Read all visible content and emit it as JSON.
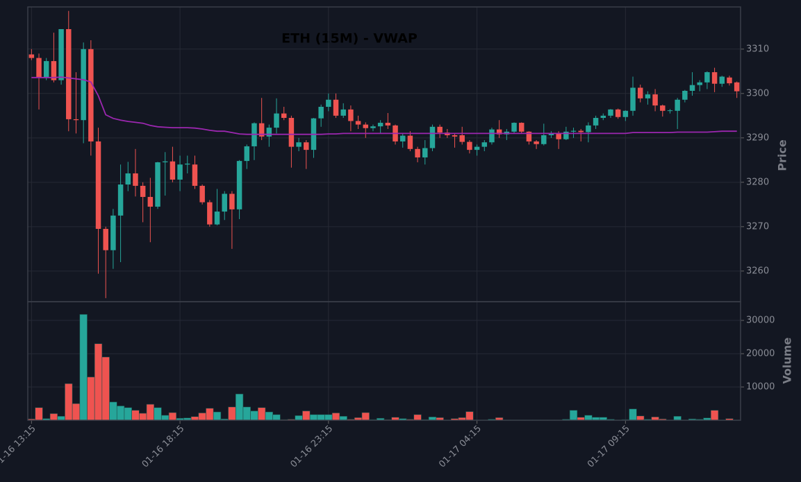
{
  "chart_data": {
    "type": "candlestick",
    "title": "ETH (15M) - VWAP",
    "ylabel": "Price",
    "volume_ylabel": "Volume",
    "up_color": "#26a69a",
    "down_color": "#ef5350",
    "grid": true,
    "ylim": [
      3253.1,
      3319.5
    ],
    "yticks": [
      3260,
      3270,
      3280,
      3290,
      3300,
      3310
    ],
    "volume_ylim": [
      0,
      35625
    ],
    "volume_yticks": [
      10000,
      20000,
      30000
    ],
    "categories": [
      "01-16 13:15",
      null,
      null,
      null,
      null,
      null,
      null,
      null,
      null,
      null,
      null,
      null,
      null,
      null,
      null,
      null,
      null,
      null,
      null,
      null,
      "01-16 18:15",
      null,
      null,
      null,
      null,
      null,
      null,
      null,
      null,
      null,
      null,
      null,
      null,
      null,
      null,
      null,
      null,
      null,
      null,
      null,
      "01-16 23:15",
      null,
      null,
      null,
      null,
      null,
      null,
      null,
      null,
      null,
      null,
      null,
      null,
      null,
      null,
      null,
      null,
      null,
      null,
      null,
      "01-17 04:15",
      null,
      null,
      null,
      null,
      null,
      null,
      null,
      null,
      null,
      null,
      null,
      null,
      null,
      null,
      null,
      null,
      null,
      null,
      null,
      "01-17 09:15",
      null,
      null,
      null,
      null,
      null,
      null,
      null,
      null,
      null,
      null,
      null,
      null,
      null,
      null,
      null
    ],
    "open": [
      3308.8,
      3308,
      3303.7,
      3307.3,
      3303,
      3314.5,
      3294.2,
      3294,
      3310,
      3289.2,
      3269.5,
      3264.7,
      3272.5,
      3279.5,
      3282,
      3279.2,
      3276.7,
      3274.5,
      3284.5,
      3284.7,
      3280.6,
      3284,
      3284,
      3279.2,
      3275.5,
      3270.5,
      3273.4,
      3277.4,
      3273.9,
      3284.8,
      3288.1,
      3293.3,
      3290.3,
      3292.3,
      3295.5,
      3294.5,
      3288,
      3289,
      3287.3,
      3294.4,
      3297,
      3298.6,
      3295,
      3296.4,
      3293.8,
      3293,
      3292.2,
      3292.6,
      3293.4,
      3292.8,
      3289.2,
      3290.5,
      3287.5,
      3285.6,
      3287.7,
      3292.5,
      3291.2,
      3290.6,
      3290.6,
      3289.1,
      3287.3,
      3288,
      3289,
      3291.9,
      3290.8,
      3291.4,
      3293.4,
      3291.4,
      3289.2,
      3288.6,
      3290.6,
      3291,
      3289.7,
      3291.4,
      3291.6,
      3291.3,
      3292.8,
      3294.5,
      3295,
      3296.4,
      3294.7,
      3296.1,
      3301.3,
      3298.9,
      3299.8,
      3297.3,
      3296.1,
      3296.1,
      3298.6,
      3300.6,
      3301.9,
      3302.5,
      3304.8,
      3302.2,
      3303.6,
      3302.5
    ],
    "high": [
      3310,
      3309,
      3308,
      3313.7,
      3314.5,
      3318.6,
      3304.8,
      3311.5,
      3312,
      3292.3,
      3270,
      3274,
      3284,
      3284.6,
      3287.5,
      3280,
      3281,
      3284.6,
      3286.8,
      3288,
      3286,
      3286,
      3286,
      3279.5,
      3276,
      3278.5,
      3278,
      3278,
      3285,
      3288.5,
      3293.5,
      3299,
      3293,
      3298.9,
      3297,
      3295,
      3290,
      3289.5,
      3294.5,
      3297.5,
      3300,
      3300,
      3297.8,
      3297.3,
      3295,
      3293.5,
      3293,
      3294,
      3295.6,
      3293,
      3291,
      3291.5,
      3288,
      3289.5,
      3293,
      3293,
      3292,
      3291,
      3292.5,
      3289.5,
      3288.5,
      3289.5,
      3292.3,
      3294,
      3292,
      3293.5,
      3293.5,
      3291.5,
      3289.5,
      3293.2,
      3291.5,
      3291.5,
      3292.5,
      3292.3,
      3292,
      3293.5,
      3295,
      3295.5,
      3296.5,
      3296.6,
      3296.2,
      3303.8,
      3302,
      3300.5,
      3301,
      3297.5,
      3296.5,
      3299,
      3300.8,
      3304.8,
      3303,
      3305,
      3305.8,
      3304,
      3304,
      3302.7
    ],
    "low": [
      3307.5,
      3296.4,
      3303,
      3302.5,
      3302,
      3291.5,
      3291,
      3288.8,
      3286,
      3259.4,
      3253.9,
      3260.5,
      3262,
      3278,
      3276.8,
      3271,
      3266.5,
      3274,
      3277,
      3280,
      3278,
      3282,
      3278.5,
      3275,
      3270,
      3270.3,
      3271.5,
      3265,
      3271.7,
      3283,
      3285,
      3289.5,
      3288,
      3291,
      3294,
      3283.3,
      3287,
      3283,
      3285.5,
      3292.5,
      3296,
      3294.5,
      3294.5,
      3291.5,
      3292,
      3290,
      3291.5,
      3291,
      3292,
      3288.5,
      3287.8,
      3287,
      3284.5,
      3284,
      3287,
      3290,
      3290,
      3287.8,
      3288.5,
      3286.5,
      3286,
      3287,
      3288.5,
      3290,
      3289.5,
      3291,
      3291,
      3288.5,
      3287.5,
      3288.3,
      3290,
      3287.5,
      3289.5,
      3290,
      3289.2,
      3289,
      3292,
      3294,
      3294.5,
      3294.3,
      3293.8,
      3295,
      3298,
      3297.5,
      3296,
      3294.8,
      3295.5,
      3292,
      3298,
      3299.5,
      3300.5,
      3301,
      3300.3,
      3301.5,
      3301.8,
      3299
    ],
    "close": [
      3308,
      3303.7,
      3307.3,
      3303,
      3314.5,
      3294.2,
      3294,
      3310,
      3289.2,
      3269.5,
      3264.7,
      3272.5,
      3279.5,
      3282,
      3279.2,
      3276.7,
      3274.5,
      3284.5,
      3284.7,
      3280.6,
      3284,
      3284.2,
      3279.2,
      3275.5,
      3270.5,
      3273.4,
      3277.4,
      3273.9,
      3284.8,
      3288.1,
      3293.3,
      3290.3,
      3292.3,
      3295.5,
      3294.5,
      3288,
      3289,
      3287.3,
      3294.4,
      3297,
      3298.6,
      3295,
      3296.4,
      3293.8,
      3293,
      3292.2,
      3292.6,
      3293.4,
      3292.8,
      3289.2,
      3290.5,
      3287.5,
      3285.6,
      3287.7,
      3292.5,
      3291.2,
      3290.6,
      3290.3,
      3289.1,
      3287.3,
      3288,
      3289,
      3291.9,
      3290.8,
      3291.4,
      3293.4,
      3291.4,
      3289.2,
      3288.6,
      3290.6,
      3291,
      3289.7,
      3291.4,
      3291.6,
      3291.3,
      3292.8,
      3294.5,
      3295,
      3296.4,
      3294.7,
      3296.1,
      3301.3,
      3298.9,
      3299.8,
      3297.3,
      3296.1,
      3296.2,
      3298.6,
      3300.6,
      3301.9,
      3302.5,
      3304.8,
      3302.2,
      3303.8,
      3302.3,
      3300.5
    ],
    "volume": [
      400,
      3800,
      500,
      2000,
      1200,
      11000,
      5000,
      31800,
      13000,
      23000,
      19000,
      5500,
      4300,
      3800,
      3000,
      2100,
      4800,
      3800,
      1500,
      2300,
      600,
      700,
      1100,
      2200,
      3600,
      2500,
      400,
      4000,
      7900,
      4000,
      2800,
      3800,
      2500,
      1700,
      200,
      300,
      1400,
      2800,
      1700,
      1700,
      1700,
      2200,
      1200,
      300,
      800,
      2300,
      200,
      600,
      200,
      900,
      500,
      300,
      1700,
      200,
      1000,
      800,
      100,
      500,
      800,
      2600,
      100,
      100,
      300,
      800,
      100,
      100,
      100,
      100,
      100,
      100,
      100,
      100,
      300,
      3000,
      900,
      1500,
      900,
      900,
      300,
      100,
      200,
      3400,
      1300,
      300,
      1000,
      400,
      100,
      1200,
      100,
      400,
      300,
      700,
      3000,
      100,
      500,
      100
    ],
    "vwap": {
      "color": "#9c27b0",
      "values": [
        3303.6,
        3303.6,
        3303.6,
        3303.6,
        3303.7,
        3303.5,
        3303.3,
        3303.1,
        3302.6,
        3299.5,
        3295.2,
        3294.4,
        3294,
        3293.7,
        3293.5,
        3293.3,
        3292.8,
        3292.5,
        3292.4,
        3292.3,
        3292.3,
        3292.3,
        3292.2,
        3292,
        3291.7,
        3291.5,
        3291.5,
        3291.2,
        3290.9,
        3290.8,
        3290.8,
        3290.8,
        3290.8,
        3290.8,
        3290.8,
        3290.8,
        3290.8,
        3290.8,
        3290.8,
        3290.8,
        3290.9,
        3290.9,
        3291,
        3291,
        3291,
        3291,
        3291,
        3291,
        3291,
        3291,
        3291,
        3291,
        3291,
        3291,
        3291,
        3291,
        3291,
        3291,
        3291,
        3291,
        3291,
        3291,
        3291,
        3291,
        3291,
        3291,
        3291,
        3291,
        3291,
        3291,
        3291,
        3291,
        3291,
        3291,
        3291,
        3291,
        3291,
        3291,
        3291,
        3291,
        3291,
        3291.2,
        3291.2,
        3291.2,
        3291.2,
        3291.2,
        3291.2,
        3291.3,
        3291.3,
        3291.3,
        3291.3,
        3291.3,
        3291.4,
        3291.5,
        3291.5,
        3291.5
      ]
    }
  }
}
